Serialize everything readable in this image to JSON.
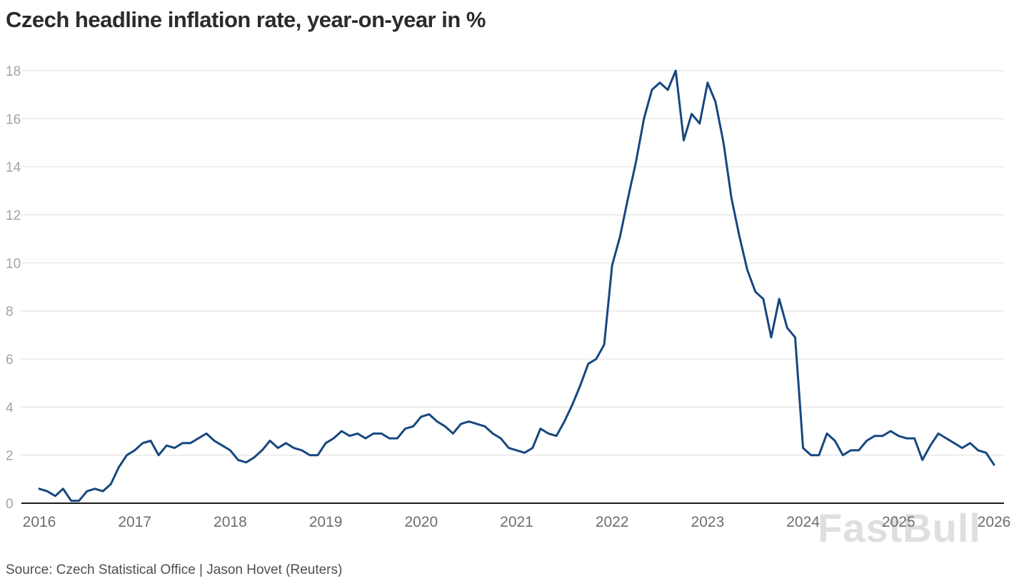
{
  "page": {
    "title": "Czech headline inflation rate, year-on-year in %",
    "source": "Source: Czech Statistical Office  | Jason Hovet (Reuters)",
    "watermark": "FastBull"
  },
  "chart_data": {
    "type": "line",
    "title": "Czech headline inflation rate, year-on-year in %",
    "xlabel": "",
    "ylabel": "",
    "grid": "horizontal",
    "legend": "none",
    "line_color": "#17477F",
    "ylim": [
      0,
      18
    ],
    "y_ticks": [
      0,
      2,
      4,
      6,
      8,
      10,
      12,
      14,
      16,
      18
    ],
    "x_tick_labels": [
      "2016",
      "2017",
      "2018",
      "2019",
      "2020",
      "2021",
      "2022",
      "2023",
      "2024",
      "2025",
      "2026"
    ],
    "series": [
      {
        "name": "Czech headline inflation, year-on-year %",
        "frequency": "monthly",
        "start": "2016-01",
        "end": "2026-01",
        "values": [
          0.6,
          0.5,
          0.3,
          0.6,
          0.1,
          0.1,
          0.5,
          0.6,
          0.5,
          0.8,
          1.5,
          2.0,
          2.2,
          2.5,
          2.6,
          2.0,
          2.4,
          2.3,
          2.5,
          2.5,
          2.7,
          2.9,
          2.6,
          2.4,
          2.2,
          1.8,
          1.7,
          1.9,
          2.2,
          2.6,
          2.3,
          2.5,
          2.3,
          2.2,
          2.0,
          2.0,
          2.5,
          2.7,
          3.0,
          2.8,
          2.9,
          2.7,
          2.9,
          2.9,
          2.7,
          2.7,
          3.1,
          3.2,
          3.6,
          3.7,
          3.4,
          3.2,
          2.9,
          3.3,
          3.4,
          3.3,
          3.2,
          2.9,
          2.7,
          2.3,
          2.2,
          2.1,
          2.3,
          3.1,
          2.9,
          2.8,
          3.4,
          4.1,
          4.9,
          5.8,
          6.0,
          6.6,
          9.9,
          11.1,
          12.7,
          14.2,
          16.0,
          17.2,
          17.5,
          17.2,
          18.0,
          15.1,
          16.2,
          15.8,
          17.5,
          16.7,
          15.0,
          12.7,
          11.1,
          9.7,
          8.8,
          8.5,
          6.9,
          8.5,
          7.3,
          6.9,
          2.3,
          2.0,
          2.0,
          2.9,
          2.6,
          2.0,
          2.2,
          2.2,
          2.6,
          2.8,
          2.8,
          3.0,
          2.8,
          2.7,
          2.7,
          1.8,
          2.4,
          2.9,
          2.7,
          2.5,
          2.3,
          2.5,
          2.2,
          2.1,
          1.6
        ]
      }
    ]
  }
}
